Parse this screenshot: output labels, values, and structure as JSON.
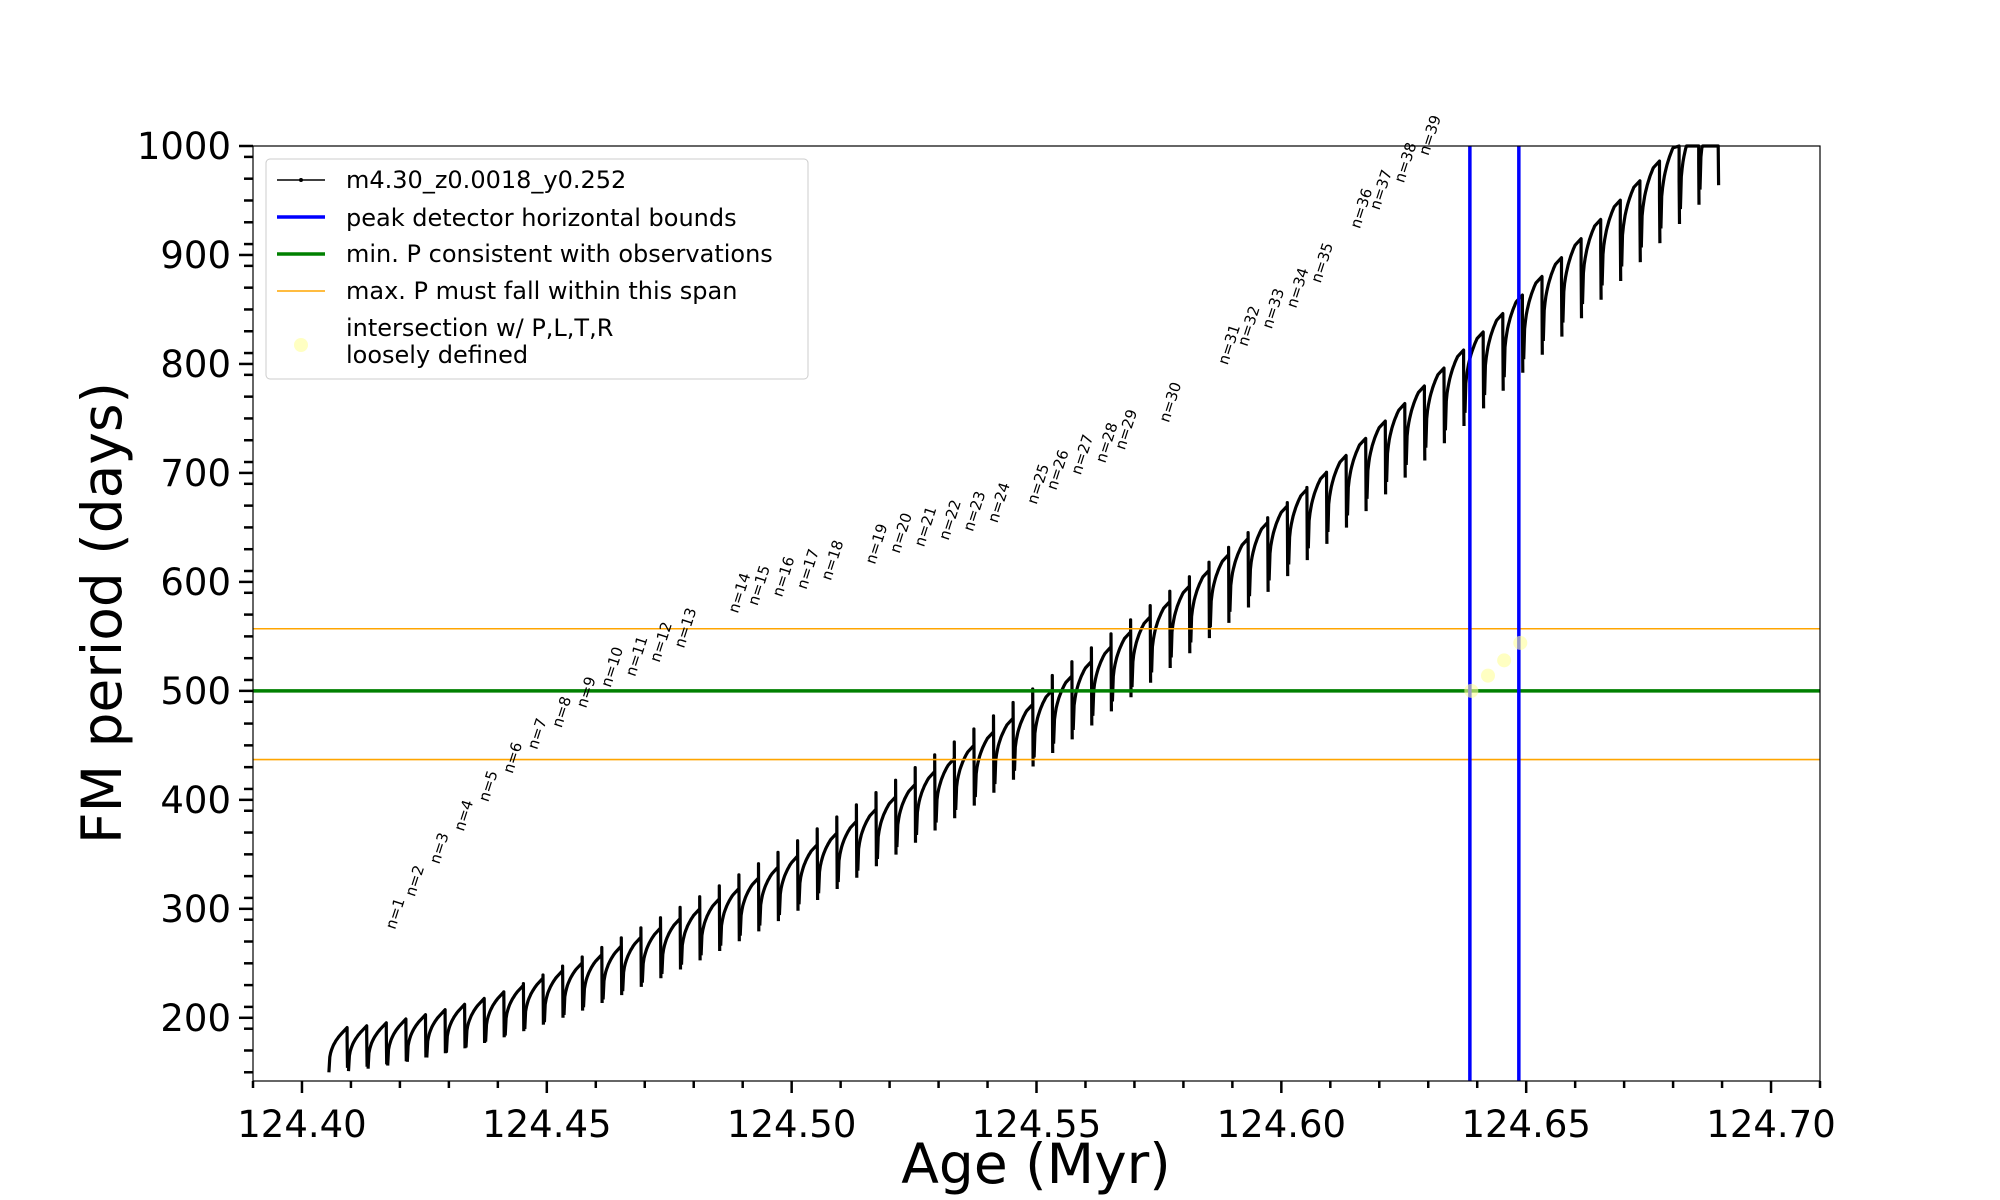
{
  "chart_data": {
    "type": "line",
    "title": "",
    "xlabel": "Age (Myr)",
    "ylabel": "FM period (days)",
    "xlim": [
      124.39,
      124.71
    ],
    "ylim": [
      142,
      1000
    ],
    "x_ticks": [
      124.4,
      124.45,
      124.5,
      124.55,
      124.6,
      124.65,
      124.7
    ],
    "x_tick_labels": [
      "124.40",
      "124.45",
      "124.50",
      "124.55",
      "124.60",
      "124.65",
      "124.70"
    ],
    "y_ticks": [
      200,
      300,
      400,
      500,
      600,
      700,
      800,
      900,
      1000
    ],
    "y_tick_labels": [
      "200",
      "300",
      "400",
      "500",
      "600",
      "700",
      "800",
      "900",
      "1000"
    ],
    "grid": false,
    "legend_position": "top-left",
    "pulse_cycles": {
      "description_series": "m4.30_z0.0018_y0.252",
      "count": 71,
      "first_cycle_start_age": 124.4055,
      "last_cycle_start_age": 124.6855,
      "first_cycle_start_period": 150,
      "last_cycle_start_period": 960,
      "first_spike_period": 180,
      "last_spike_period": 1000
    },
    "cycle_labels": [
      "n=1",
      "n=2",
      "n=3",
      "n=4",
      "n=5",
      "n=6",
      "n=7",
      "n=8",
      "n=9",
      "n=10",
      "n=11",
      "n=12",
      "n=13",
      "n=14",
      "n=15",
      "n=16",
      "n=17",
      "n=18",
      "n=19",
      "n=20",
      "n=21",
      "n=22",
      "n=23",
      "n=24",
      "n=25",
      "n=26",
      "n=27",
      "n=28",
      "n=29",
      "n=30",
      "n=31",
      "n=32",
      "n=33",
      "n=34",
      "n=35",
      "n=36",
      "n=37",
      "n=38",
      "n=39"
    ],
    "cycle_label_points": [
      {
        "x": 124.419,
        "y": 275
      },
      {
        "x": 124.423,
        "y": 305
      },
      {
        "x": 124.428,
        "y": 335
      },
      {
        "x": 124.433,
        "y": 365
      },
      {
        "x": 124.438,
        "y": 392
      },
      {
        "x": 124.443,
        "y": 418
      },
      {
        "x": 124.448,
        "y": 440
      },
      {
        "x": 124.453,
        "y": 460
      },
      {
        "x": 124.458,
        "y": 478
      },
      {
        "x": 124.463,
        "y": 497
      },
      {
        "x": 124.468,
        "y": 507
      },
      {
        "x": 124.473,
        "y": 520
      },
      {
        "x": 124.478,
        "y": 533
      },
      {
        "x": 124.489,
        "y": 565
      },
      {
        "x": 124.493,
        "y": 572
      },
      {
        "x": 124.498,
        "y": 580
      },
      {
        "x": 124.503,
        "y": 587
      },
      {
        "x": 124.508,
        "y": 595
      },
      {
        "x": 124.517,
        "y": 610
      },
      {
        "x": 124.522,
        "y": 620
      },
      {
        "x": 124.527,
        "y": 626
      },
      {
        "x": 124.532,
        "y": 632
      },
      {
        "x": 124.537,
        "y": 640
      },
      {
        "x": 124.542,
        "y": 648
      },
      {
        "x": 124.55,
        "y": 665
      },
      {
        "x": 124.554,
        "y": 678
      },
      {
        "x": 124.559,
        "y": 692
      },
      {
        "x": 124.564,
        "y": 703
      },
      {
        "x": 124.568,
        "y": 715
      },
      {
        "x": 124.577,
        "y": 740
      },
      {
        "x": 124.589,
        "y": 793
      },
      {
        "x": 124.593,
        "y": 810
      },
      {
        "x": 124.598,
        "y": 826
      },
      {
        "x": 124.603,
        "y": 845
      },
      {
        "x": 124.608,
        "y": 868
      },
      {
        "x": 124.616,
        "y": 918
      },
      {
        "x": 124.62,
        "y": 935
      },
      {
        "x": 124.625,
        "y": 960
      },
      {
        "x": 124.63,
        "y": 985
      }
    ],
    "series": [
      {
        "name": "m4.30_z0.0018_y0.252",
        "color": "#000000"
      },
      {
        "name": "peak detector horizontal bounds",
        "color": "#0000ff",
        "x_values": [
          124.6385,
          124.6485
        ]
      },
      {
        "name": "min. P consistent with observations",
        "color": "#008000",
        "y_value": 500
      },
      {
        "name": "max. P must fall within this span",
        "color": "#ffa500",
        "y_values": [
          437,
          557
        ]
      },
      {
        "name": "intersection w/ P,L,T,R\nloosely defined",
        "color": "#ffff99",
        "points": [
          {
            "x": 124.6388,
            "y": 500
          },
          {
            "x": 124.6422,
            "y": 514
          },
          {
            "x": 124.6455,
            "y": 528
          },
          {
            "x": 124.6488,
            "y": 544
          }
        ]
      }
    ]
  }
}
